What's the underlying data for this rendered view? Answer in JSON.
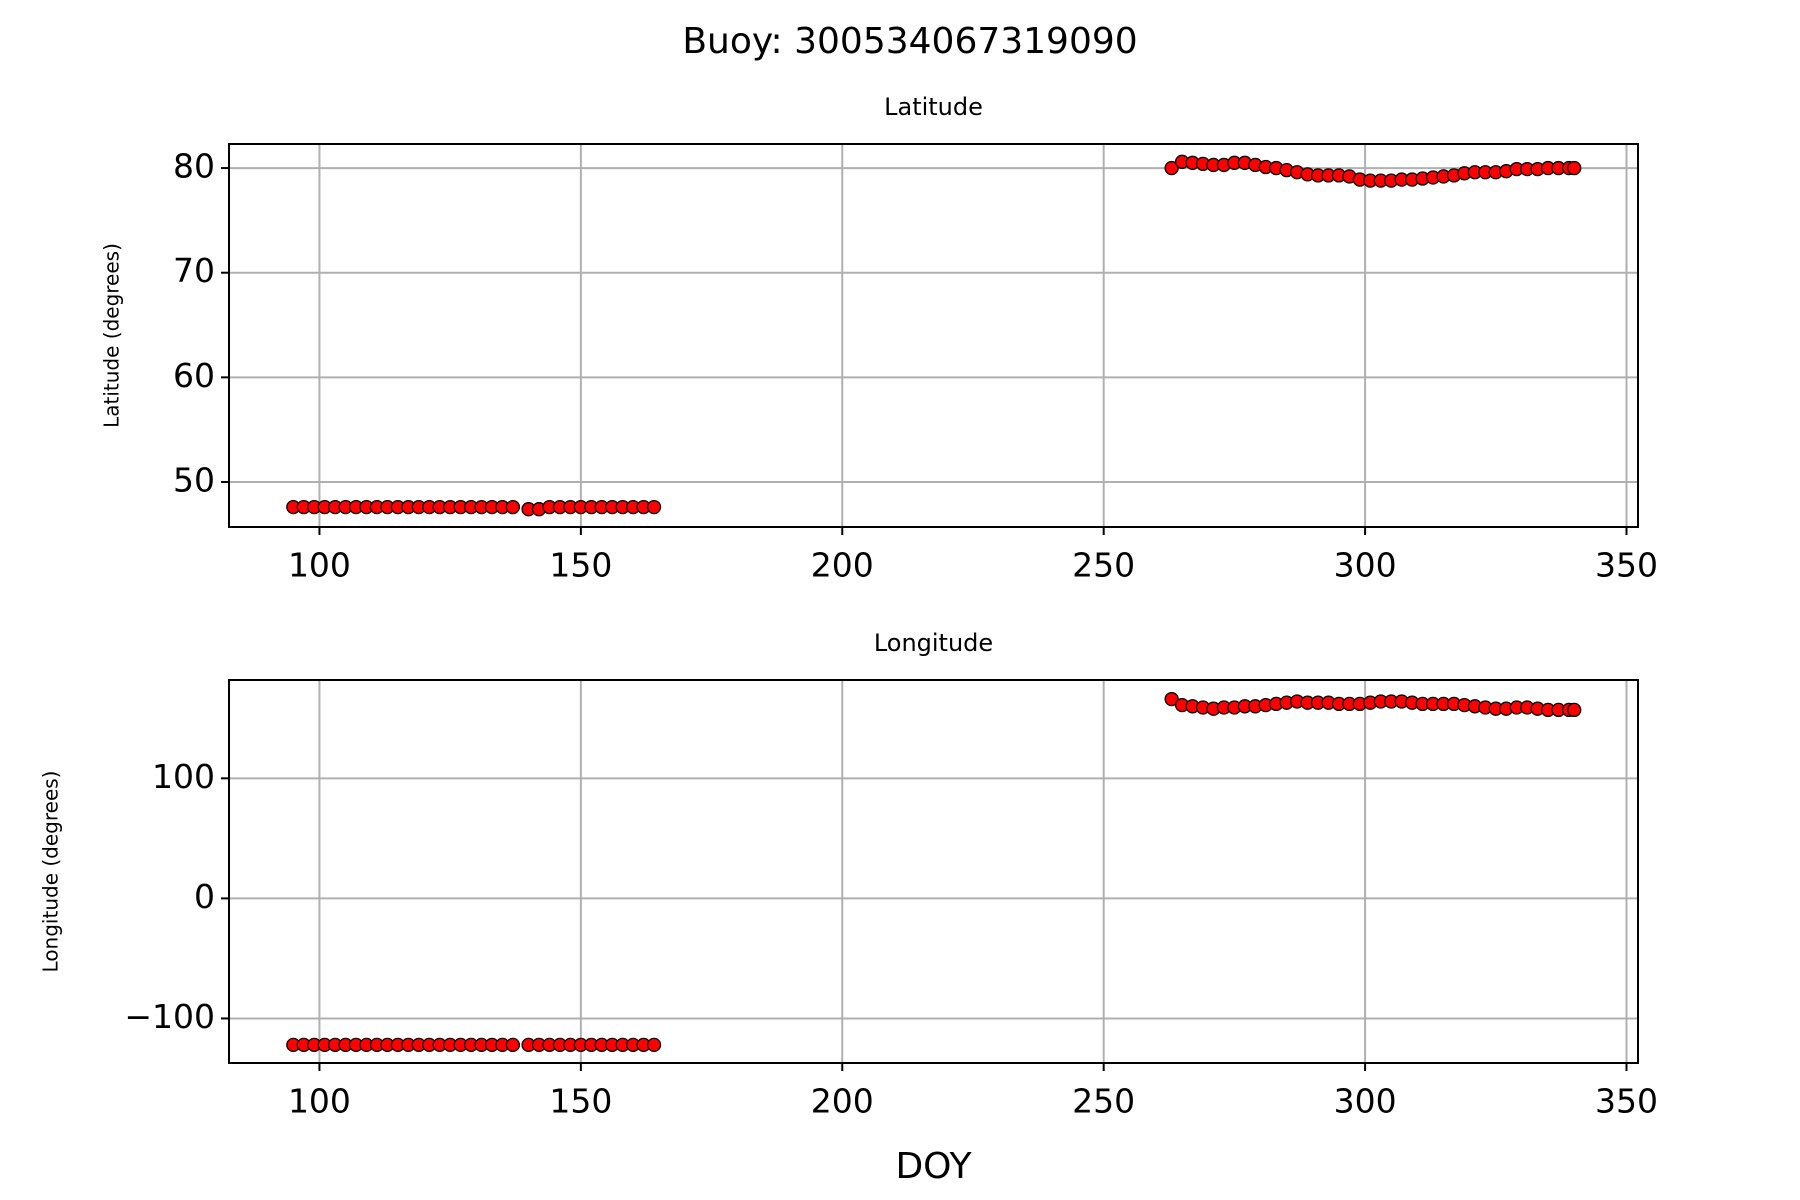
{
  "title": "Buoy: 300534067319090",
  "chart_data": [
    {
      "type": "scatter",
      "title": "Latitude",
      "ylabel": "Latitude (degrees)",
      "color": "#ff0000",
      "edgecolor": "#000000",
      "grid": true,
      "xlim": [
        82.7,
        352.2
      ],
      "xticks": [
        100,
        150,
        200,
        250,
        300,
        350
      ],
      "ylim": [
        45.7,
        82.3
      ],
      "yticks": [
        50,
        60,
        70,
        80
      ],
      "x": [
        95,
        97,
        99,
        101,
        103,
        105,
        107,
        109,
        111,
        113,
        115,
        117,
        119,
        121,
        123,
        125,
        127,
        129,
        131,
        133,
        135,
        137,
        140,
        142,
        144,
        146,
        148,
        150,
        152,
        154,
        156,
        158,
        160,
        162,
        164,
        263,
        265,
        267,
        269,
        271,
        273,
        275,
        277,
        279,
        281,
        283,
        285,
        287,
        289,
        291,
        293,
        295,
        297,
        299,
        301,
        303,
        305,
        307,
        309,
        311,
        313,
        315,
        317,
        319,
        321,
        323,
        325,
        327,
        329,
        331,
        333,
        335,
        337,
        339,
        340
      ],
      "values": [
        47.6,
        47.6,
        47.6,
        47.6,
        47.6,
        47.6,
        47.6,
        47.6,
        47.6,
        47.6,
        47.6,
        47.6,
        47.6,
        47.6,
        47.6,
        47.6,
        47.6,
        47.6,
        47.6,
        47.6,
        47.6,
        47.6,
        47.4,
        47.4,
        47.6,
        47.6,
        47.6,
        47.6,
        47.6,
        47.6,
        47.6,
        47.6,
        47.6,
        47.6,
        47.6,
        80.0,
        80.6,
        80.5,
        80.4,
        80.3,
        80.3,
        80.5,
        80.5,
        80.3,
        80.1,
        80.0,
        79.8,
        79.6,
        79.4,
        79.3,
        79.3,
        79.3,
        79.2,
        78.9,
        78.8,
        78.8,
        78.8,
        78.9,
        78.9,
        79.0,
        79.1,
        79.2,
        79.3,
        79.5,
        79.6,
        79.6,
        79.6,
        79.7,
        79.9,
        79.9,
        79.9,
        80.0,
        80.0,
        80.0,
        80.0
      ]
    },
    {
      "type": "scatter",
      "title": "Longitude",
      "ylabel": "Longitude (degrees)",
      "xlabel": "DOY",
      "color": "#ff0000",
      "edgecolor": "#000000",
      "grid": true,
      "xlim": [
        82.7,
        352.2
      ],
      "xticks": [
        100,
        150,
        200,
        250,
        300,
        350
      ],
      "ylim": [
        -137.1,
        181.9
      ],
      "yticks": [
        {
          "value": -100,
          "label": "−100"
        },
        0,
        100
      ],
      "x": [
        95,
        97,
        99,
        101,
        103,
        105,
        107,
        109,
        111,
        113,
        115,
        117,
        119,
        121,
        123,
        125,
        127,
        129,
        131,
        133,
        135,
        137,
        140,
        142,
        144,
        146,
        148,
        150,
        152,
        154,
        156,
        158,
        160,
        162,
        164,
        263,
        265,
        267,
        269,
        271,
        273,
        275,
        277,
        279,
        281,
        283,
        285,
        287,
        289,
        291,
        293,
        295,
        297,
        299,
        301,
        303,
        305,
        307,
        309,
        311,
        313,
        315,
        317,
        319,
        321,
        323,
        325,
        327,
        329,
        331,
        333,
        335,
        337,
        339,
        340
      ],
      "values": [
        -122,
        -122,
        -122,
        -122,
        -122,
        -122,
        -122,
        -122,
        -122,
        -122,
        -122,
        -122,
        -122,
        -122,
        -122,
        -122,
        -122,
        -122,
        -122,
        -122,
        -122,
        -122,
        -122,
        -122,
        -122,
        -122,
        -122,
        -122,
        -122,
        -122,
        -122,
        -122,
        -122,
        -122,
        -122,
        166,
        161,
        160,
        159,
        158,
        159,
        159,
        160,
        160,
        161,
        162,
        163,
        164,
        163,
        163,
        163,
        162,
        162,
        162,
        163,
        164,
        164,
        164,
        163,
        162,
        162,
        162,
        162,
        161,
        160,
        159,
        158,
        158,
        159,
        159,
        158,
        157,
        157,
        157,
        157
      ]
    }
  ]
}
